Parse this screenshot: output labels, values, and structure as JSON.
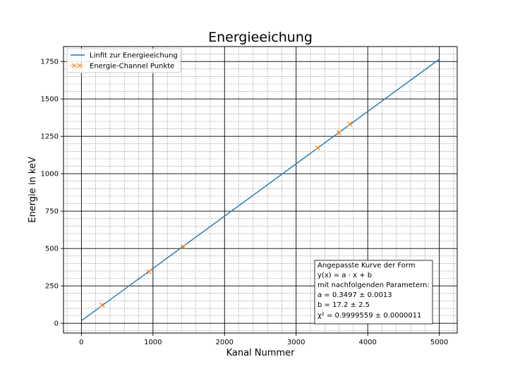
{
  "chart_data": {
    "type": "scatter",
    "title": "Energieeichung",
    "xlabel": "Kanal Nummer",
    "ylabel": "Energie in keV",
    "xlim": [
      -250,
      5250
    ],
    "ylim": [
      -65,
      1850
    ],
    "xticks": [
      0,
      1000,
      2000,
      3000,
      4000,
      5000
    ],
    "xtick_labels": [
      "0",
      "1000",
      "2000",
      "3000",
      "4000",
      "5000"
    ],
    "yticks": [
      0,
      250,
      500,
      750,
      1000,
      1250,
      1500,
      1750
    ],
    "ytick_labels": [
      "0",
      "250",
      "500",
      "750",
      "1000",
      "1250",
      "1500",
      "1750"
    ],
    "grid": true,
    "minor_grid": true,
    "legend_position": "top-left",
    "fit_line": {
      "name": "Linfit zur Energieeichung",
      "color": "#1f77b4",
      "a": 0.3497,
      "b": 17.2,
      "x_range": [
        0,
        5000
      ]
    },
    "series": [
      {
        "name": "Energie-Channel Punkte",
        "color": "#ff7f0e",
        "marker": "x",
        "points": [
          {
            "x": 290,
            "y": 122
          },
          {
            "x": 945,
            "y": 344
          },
          {
            "x": 1425,
            "y": 511
          },
          {
            "x": 3300,
            "y": 1173
          },
          {
            "x": 3600,
            "y": 1275
          },
          {
            "x": 3750,
            "y": 1332
          }
        ]
      }
    ],
    "annotation_lines": [
      "Angepasste Kurve der Form",
      "y(x) = a · x + b",
      "mit nachfolgenden Parametern:",
      "a = 0.3497 ± 0.0013",
      "b = 17.2 ± 2.5",
      "χ² = 0.9999559 ± 0.0000011"
    ]
  }
}
